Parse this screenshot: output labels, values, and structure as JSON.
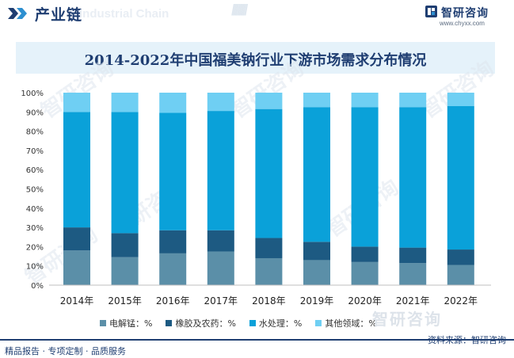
{
  "header": {
    "title": "产业链",
    "ghost_text": "Industrial Chain",
    "slashes": "////////"
  },
  "brand": {
    "name": "智研咨询",
    "url": "www.chyxx.com"
  },
  "watermark": {
    "text": "智研咨询"
  },
  "footer": {
    "left_text": "精品报告 · 专项定制 · 品质服务",
    "right_text": "资料来源：智研咨询"
  },
  "colors": {
    "electrolytic_manganese": "#5b8fa8",
    "rubber_pesticide": "#1d5a82",
    "water_treatment": "#0aa1d9",
    "other": "#6fcff3",
    "title_navy": "#1f3e72",
    "title_band": "#e5f2fa"
  },
  "chart_data": {
    "type": "bar",
    "stacked": true,
    "title": "2014-2022年中国福美钠行业下游市场需求分布情况",
    "categories": [
      "2014年",
      "2015年",
      "2016年",
      "2017年",
      "2018年",
      "2019年",
      "2020年",
      "2021年",
      "2022年"
    ],
    "series": [
      {
        "name": "电解锰：%",
        "values": [
          18,
          14.5,
          16.5,
          17.5,
          14,
          13,
          12,
          11.5,
          10.5
        ]
      },
      {
        "name": "橡胶及农药：%",
        "values": [
          12,
          12.5,
          12,
          11,
          10.5,
          9.5,
          8,
          8,
          8
        ]
      },
      {
        "name": "水处理：%",
        "values": [
          60,
          63,
          61,
          62,
          67,
          70,
          72.5,
          73,
          74.5
        ]
      },
      {
        "name": "其他领域：%",
        "values": [
          10,
          10,
          10.5,
          9.5,
          8.5,
          7.5,
          7.5,
          7.5,
          7
        ]
      }
    ],
    "y_ticks": [
      "0%",
      "10%",
      "20%",
      "30%",
      "40%",
      "50%",
      "60%",
      "70%",
      "80%",
      "90%",
      "100%"
    ],
    "ylim": [
      0,
      100
    ],
    "grid": false,
    "legend_position": "bottom"
  }
}
